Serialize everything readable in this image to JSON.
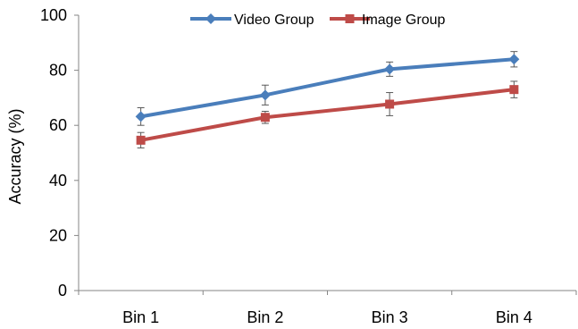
{
  "chart_data": {
    "type": "line",
    "title": "",
    "xlabel": "",
    "ylabel": "Accuracy (%)",
    "categories": [
      "Bin 1",
      "Bin 2",
      "Bin 3",
      "Bin 4"
    ],
    "ylim": [
      0,
      100
    ],
    "yticks": [
      0,
      20,
      40,
      60,
      80,
      100
    ],
    "grid": false,
    "legend_position": "top-center",
    "series": [
      {
        "name": "Video Group",
        "color": "#4A7EBB",
        "marker": "diamond",
        "values": [
          63.2,
          71.0,
          80.4,
          84.0
        ],
        "errors": [
          3.2,
          3.6,
          2.6,
          2.8
        ]
      },
      {
        "name": "Image Group",
        "color": "#BE4B48",
        "marker": "square",
        "values": [
          54.6,
          62.9,
          67.7,
          73.0
        ],
        "errors": [
          2.8,
          2.2,
          4.2,
          3.0
        ]
      }
    ]
  }
}
